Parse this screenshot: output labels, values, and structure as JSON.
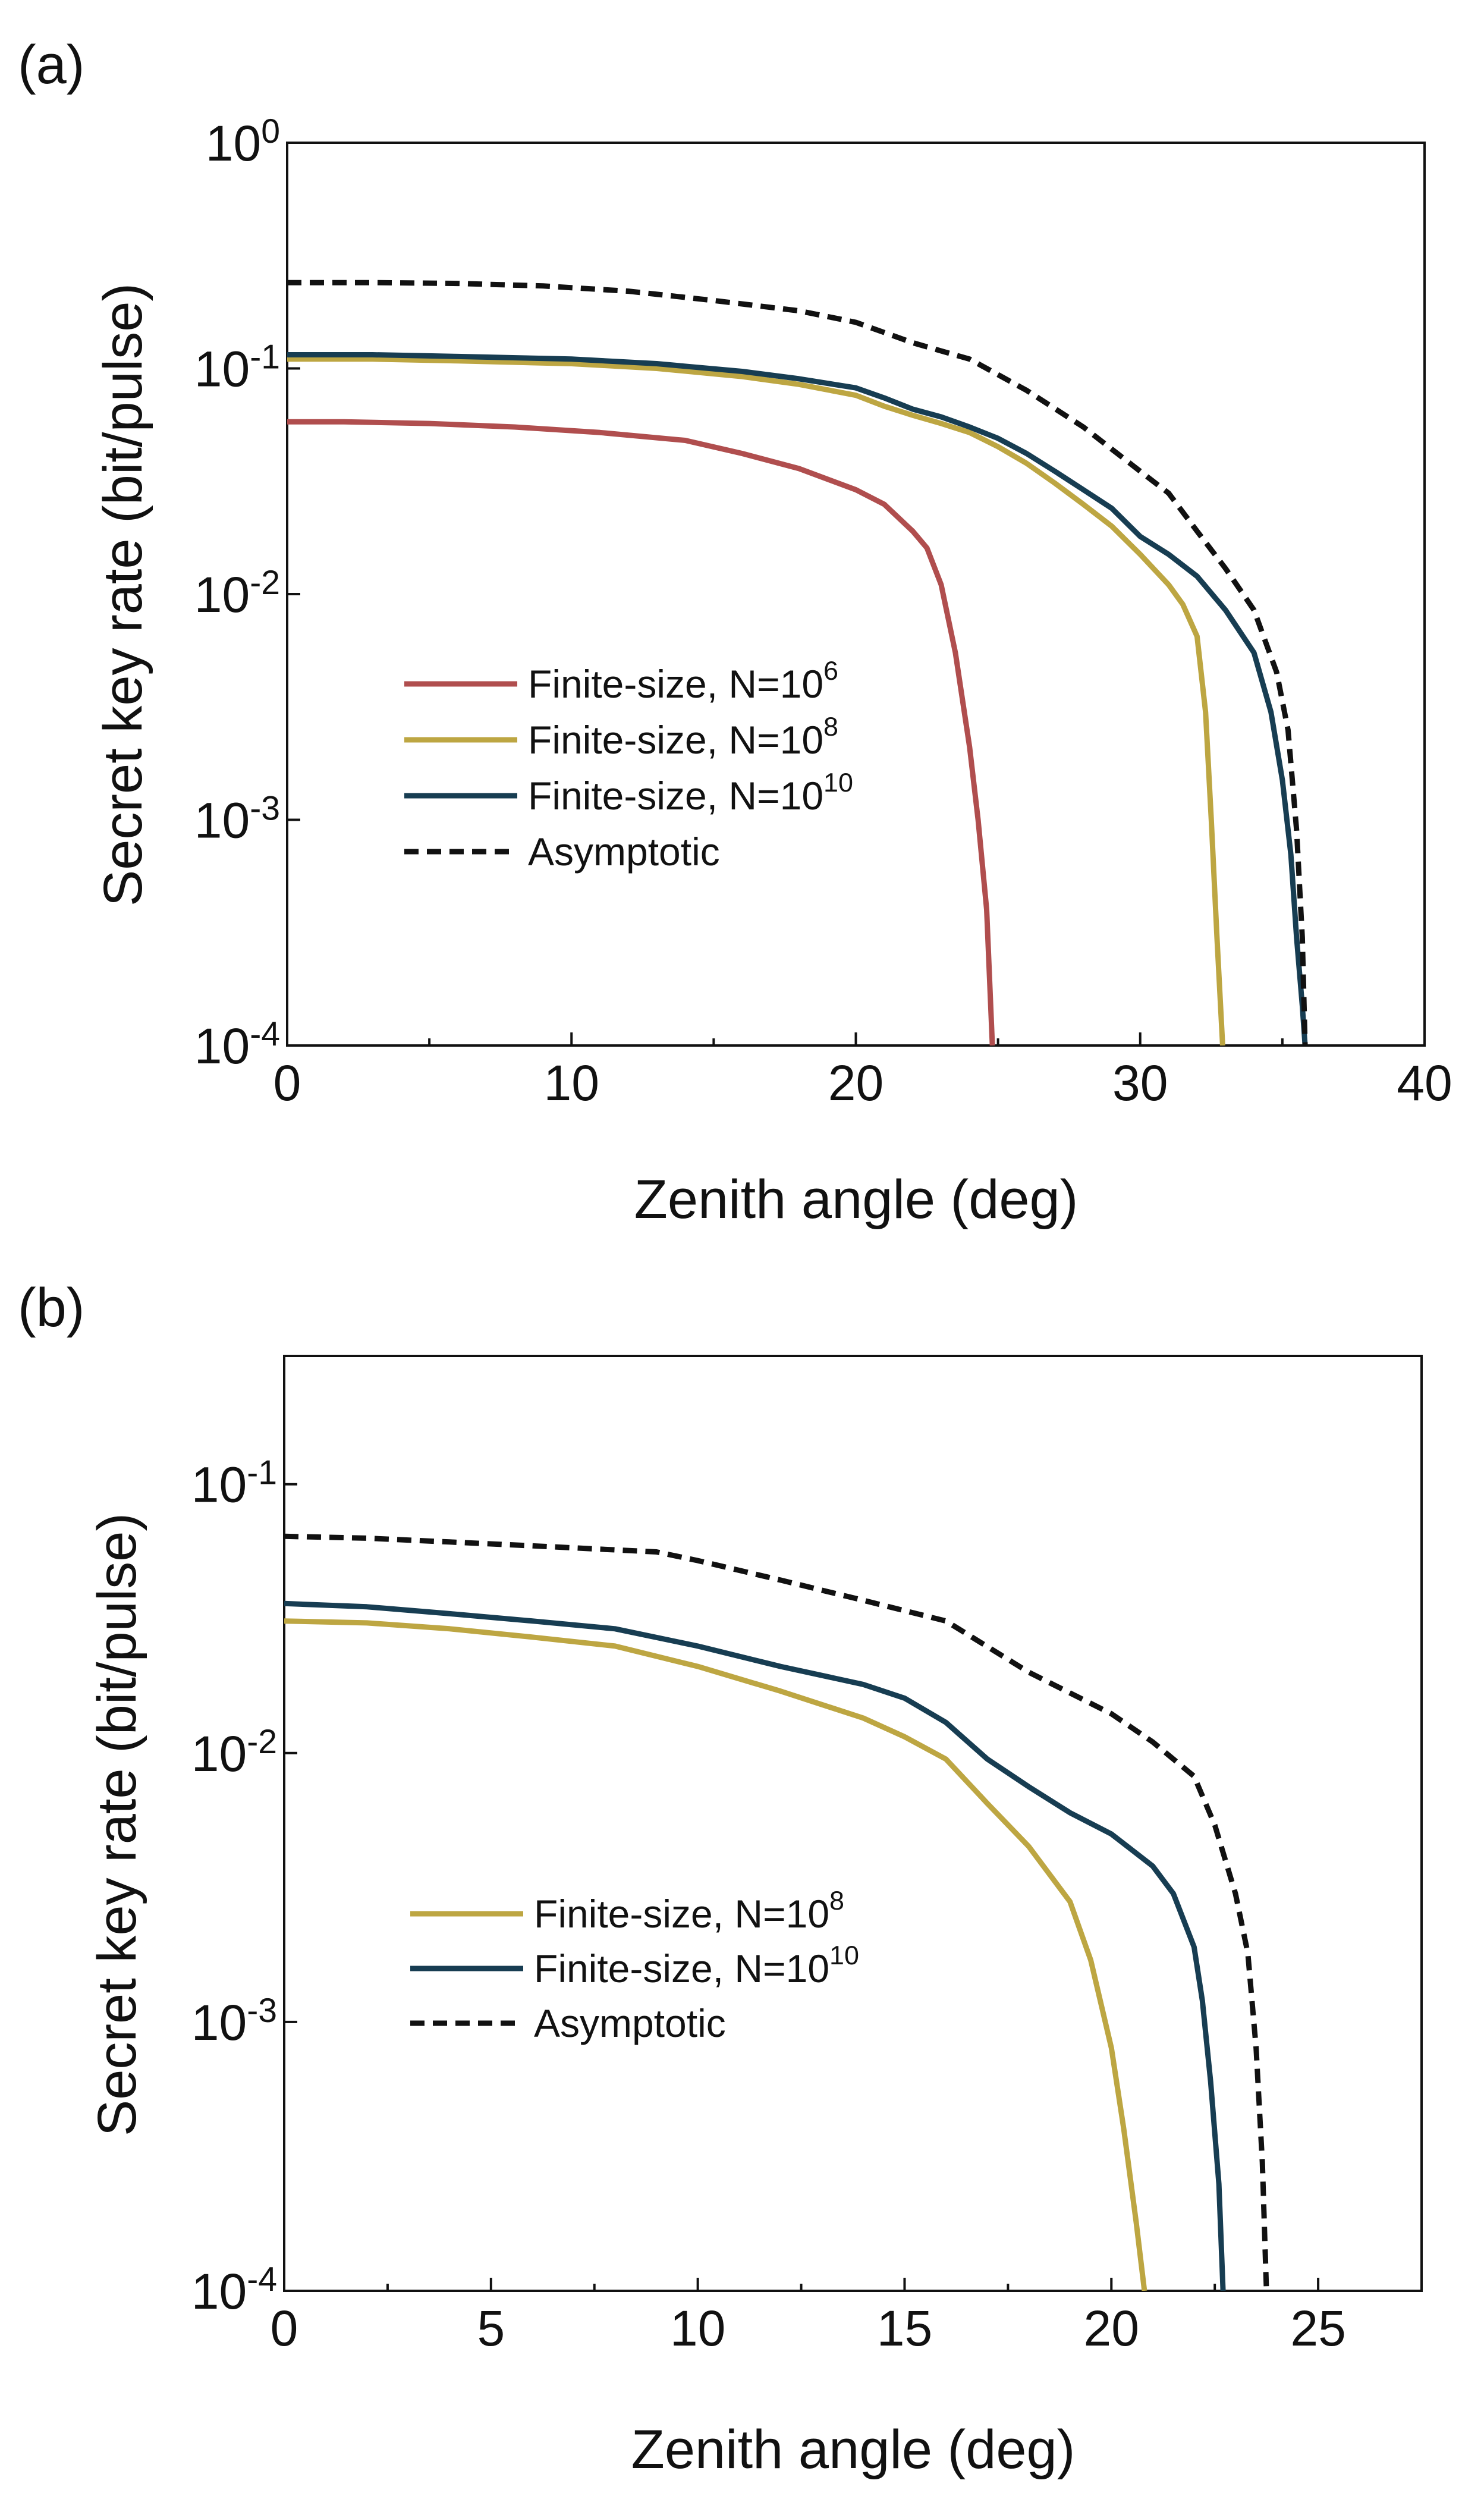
{
  "chart_data": [
    {
      "panel": "(a)",
      "type": "line",
      "xlabel": "Zenith angle (deg)",
      "ylabel": "Secret key rate (bit/pulse)",
      "xlim": [
        0,
        40
      ],
      "ylim": [
        0.0001,
        1
      ],
      "yscale": "log",
      "xticks": [
        0,
        10,
        20,
        30,
        40
      ],
      "yticks": [
        {
          "value": 1,
          "base": "10",
          "exp": "0"
        },
        {
          "value": 0.1,
          "base": "10",
          "exp": "-1"
        },
        {
          "value": 0.01,
          "base": "10",
          "exp": "-2"
        },
        {
          "value": 0.001,
          "base": "10",
          "exp": "-3"
        },
        {
          "value": 0.0001,
          "base": "10",
          "exp": "-4"
        }
      ],
      "legend_position": "lower-left",
      "series": [
        {
          "name": "Finite-size, N=10^6",
          "label_main": "Finite-size, N=10",
          "label_exp": "6",
          "color": "#b04e4e",
          "dash": false,
          "x": [
            0,
            2,
            5,
            8,
            11,
            14,
            16,
            18,
            20,
            21,
            22,
            22.5,
            23,
            23.5,
            24,
            24.3,
            24.6,
            24.7,
            24.8
          ],
          "y": [
            0.058,
            0.058,
            0.057,
            0.055,
            0.052,
            0.048,
            0.042,
            0.036,
            0.029,
            0.025,
            0.019,
            0.016,
            0.011,
            0.0055,
            0.0021,
            0.001,
            0.0004,
            0.0002,
            0.0001
          ]
        },
        {
          "name": "Finite-size, N=10^8",
          "label_main": "Finite-size, N=10",
          "label_exp": "8",
          "color": "#bda642",
          "dash": false,
          "x": [
            0,
            3,
            6,
            10,
            13,
            16,
            18,
            20,
            21,
            22,
            23,
            24,
            25,
            26,
            27,
            28,
            29,
            30,
            31,
            31.5,
            32,
            32.3,
            32.5,
            32.7,
            32.9
          ],
          "y": [
            0.11,
            0.11,
            0.108,
            0.105,
            0.1,
            0.092,
            0.085,
            0.076,
            0.068,
            0.062,
            0.057,
            0.052,
            0.045,
            0.038,
            0.031,
            0.025,
            0.02,
            0.015,
            0.011,
            0.009,
            0.0065,
            0.003,
            0.001,
            0.0003,
            0.0001
          ]
        },
        {
          "name": "Finite-size, N=10^10",
          "label_main": "Finite-size, N=10",
          "label_exp": "10",
          "color": "#173d52",
          "dash": false,
          "x": [
            0,
            3,
            6,
            10,
            13,
            16,
            18,
            20,
            21,
            22,
            23,
            24,
            25,
            26,
            27,
            28,
            29,
            30,
            31,
            32,
            33,
            34,
            34.6,
            35,
            35.3,
            35.5,
            35.7,
            35.8
          ],
          "y": [
            0.115,
            0.115,
            0.113,
            0.11,
            0.105,
            0.097,
            0.09,
            0.082,
            0.074,
            0.066,
            0.061,
            0.055,
            0.049,
            0.042,
            0.035,
            0.029,
            0.024,
            0.018,
            0.015,
            0.012,
            0.0085,
            0.0055,
            0.003,
            0.0015,
            0.0007,
            0.0003,
            0.00015,
            0.0001
          ]
        },
        {
          "name": "Asymptotic",
          "label_main": "Asymptotic",
          "label_exp": "",
          "color": "#111111",
          "dash": true,
          "x": [
            0,
            3,
            6,
            9,
            12,
            15,
            18,
            20,
            22,
            24,
            26,
            28,
            30,
            31,
            32,
            33,
            34,
            34.8,
            35.2,
            35.5,
            35.7,
            35.8
          ],
          "y": [
            0.24,
            0.24,
            0.238,
            0.232,
            0.22,
            0.2,
            0.18,
            0.16,
            0.13,
            0.11,
            0.08,
            0.055,
            0.035,
            0.028,
            0.019,
            0.013,
            0.0085,
            0.0045,
            0.0025,
            0.0009,
            0.0003,
            0.0001
          ]
        }
      ]
    },
    {
      "panel": "(b)",
      "type": "line",
      "xlabel": "Zenith angle (deg)",
      "ylabel": "Secret key rate (bit/pulse)",
      "xlim": [
        0,
        27.5
      ],
      "ylim": [
        0.0001,
        0.3
      ],
      "yscale": "log",
      "xticks": [
        0,
        5,
        10,
        15,
        20,
        25
      ],
      "yticks": [
        {
          "value": 0.1,
          "base": "10",
          "exp": "-1"
        },
        {
          "value": 0.01,
          "base": "10",
          "exp": "-2"
        },
        {
          "value": 0.001,
          "base": "10",
          "exp": "-3"
        },
        {
          "value": 0.0001,
          "base": "10",
          "exp": "-4"
        }
      ],
      "legend_position": "lower-left",
      "series": [
        {
          "name": "Finite-size, N=10^8",
          "label_main": "Finite-size, N=10",
          "label_exp": "8",
          "color": "#bda642",
          "dash": false,
          "x": [
            0,
            2,
            4,
            6,
            8,
            10,
            12,
            14,
            15,
            16,
            17,
            18,
            19,
            19.5,
            20,
            20.3,
            20.6,
            20.8
          ],
          "y": [
            0.031,
            0.0305,
            0.029,
            0.027,
            0.025,
            0.021,
            0.017,
            0.0135,
            0.0115,
            0.0095,
            0.0065,
            0.0045,
            0.0028,
            0.0017,
            0.0008,
            0.0004,
            0.00018,
            0.0001
          ]
        },
        {
          "name": "Finite-size, N=10^10",
          "label_main": "Finite-size, N=10",
          "label_exp": "10",
          "color": "#173d52",
          "dash": false,
          "x": [
            0,
            2,
            4,
            6,
            8,
            10,
            12,
            14,
            15,
            16,
            17,
            18,
            19,
            20,
            21,
            21.5,
            22,
            22.2,
            22.4,
            22.6,
            22.7
          ],
          "y": [
            0.036,
            0.035,
            0.033,
            0.031,
            0.029,
            0.025,
            0.021,
            0.018,
            0.016,
            0.013,
            0.0095,
            0.0075,
            0.006,
            0.005,
            0.0038,
            0.003,
            0.0019,
            0.0012,
            0.0006,
            0.00025,
            0.0001
          ]
        },
        {
          "name": "Asymptotic",
          "label_main": "Asymptotic",
          "label_exp": "",
          "color": "#111111",
          "dash": true,
          "x": [
            0,
            2,
            4,
            6,
            8,
            9,
            10,
            12,
            14,
            16,
            18,
            20,
            21,
            22,
            22.5,
            23,
            23.3,
            23.5,
            23.65,
            23.75
          ],
          "y": [
            0.064,
            0.063,
            0.061,
            0.059,
            0.057,
            0.056,
            0.052,
            0.044,
            0.037,
            0.031,
            0.02,
            0.014,
            0.011,
            0.0082,
            0.0054,
            0.003,
            0.0018,
            0.0008,
            0.0003,
            0.0001
          ]
        }
      ]
    }
  ]
}
